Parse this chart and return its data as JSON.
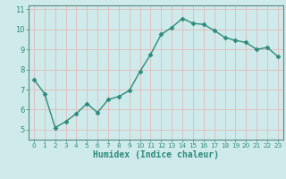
{
  "x": [
    0,
    1,
    2,
    3,
    4,
    5,
    6,
    7,
    8,
    9,
    10,
    11,
    12,
    13,
    14,
    15,
    16,
    17,
    18,
    19,
    20,
    21,
    22,
    23
  ],
  "y": [
    7.5,
    6.8,
    5.1,
    5.4,
    5.8,
    6.3,
    5.85,
    6.5,
    6.65,
    6.95,
    7.9,
    8.75,
    9.75,
    10.1,
    10.55,
    10.3,
    10.25,
    9.95,
    9.6,
    9.45,
    9.35,
    9.0,
    9.1,
    8.65
  ],
  "line_color": "#2e8b7a",
  "marker": "D",
  "marker_size": 2.5,
  "bg_color": "#ceeaea",
  "grid_color": "#b0d8d8",
  "xlabel": "Humidex (Indice chaleur)",
  "xlim": [
    -0.5,
    23.5
  ],
  "ylim": [
    4.5,
    11.2
  ],
  "yticks": [
    5,
    6,
    7,
    8,
    9,
    10,
    11
  ],
  "xticks": [
    0,
    1,
    2,
    3,
    4,
    5,
    6,
    7,
    8,
    9,
    10,
    11,
    12,
    13,
    14,
    15,
    16,
    17,
    18,
    19,
    20,
    21,
    22,
    23
  ],
  "tick_labelsize": 6,
  "xlabel_fontsize": 7,
  "axis_color": "#2e8b7a",
  "spine_color": "#5a8a80",
  "linewidth": 1.0
}
